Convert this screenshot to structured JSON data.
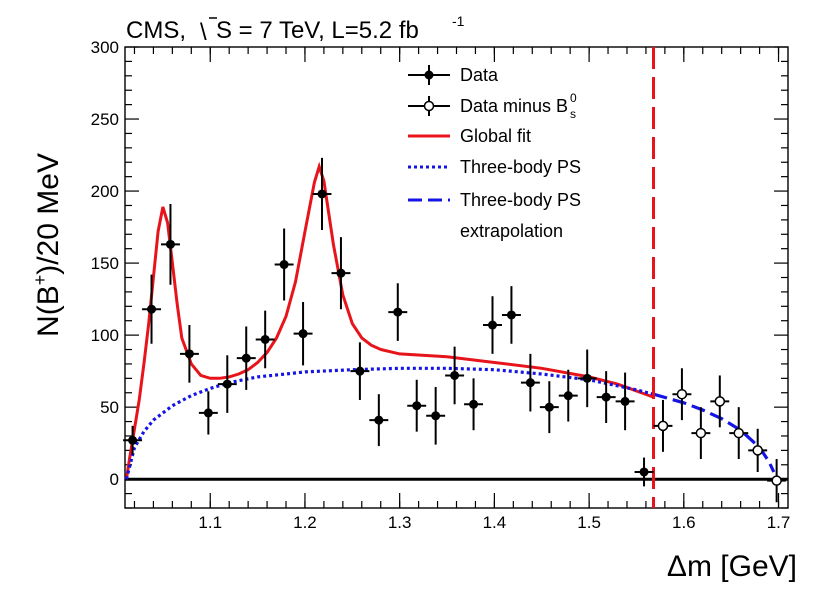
{
  "chart_data": {
    "type": "scatter",
    "header": {
      "experiment": "CMS,",
      "sqrt_s": "S = 7 TeV, L=5.2 fb",
      "lumi_exponent": "-1"
    },
    "xlabel": "Δm [GeV]",
    "ylabel": {
      "prefix": "N(B",
      "superscript": "+",
      "suffix": ")/20 MeV"
    },
    "xlim": [
      1.01,
      1.71
    ],
    "ylim": [
      -20,
      300
    ],
    "x_ticks": [
      "1.1",
      "1.2",
      "1.3",
      "1.4",
      "1.5",
      "1.6",
      "1.7"
    ],
    "y_ticks": [
      "0",
      "50",
      "100",
      "150",
      "200",
      "250",
      "300"
    ],
    "grid": false,
    "legend_position": "top-center",
    "legend": [
      {
        "label": "Data",
        "style": "filled-marker"
      },
      {
        "label": "Data minus B",
        "sub": "s",
        "sup": "0",
        "style": "open-marker"
      },
      {
        "label": "Global fit",
        "style": "solid-red"
      },
      {
        "label": "Three-body PS",
        "style": "dotted-blue"
      },
      {
        "label": "Three-body PS",
        "style": "dashed-blue"
      },
      {
        "label": "extrapolation",
        "style": "none"
      }
    ],
    "colors": {
      "fit": "#e8141c",
      "phase_space": "#1414e6",
      "cut_line": "#e8141c",
      "data": "#000000"
    },
    "x_error_halfwidth": 0.01,
    "cut_x": 1.568,
    "baseline_y": 0,
    "series": [
      {
        "name": "Data",
        "marker": "filled",
        "points": [
          {
            "x": 1.018,
            "y": 27,
            "err": 10
          },
          {
            "x": 1.038,
            "y": 118,
            "err": 24
          },
          {
            "x": 1.058,
            "y": 163,
            "err": 28
          },
          {
            "x": 1.078,
            "y": 87,
            "err": 20
          },
          {
            "x": 1.098,
            "y": 46,
            "err": 15
          },
          {
            "x": 1.118,
            "y": 66,
            "err": 20
          },
          {
            "x": 1.138,
            "y": 84,
            "err": 22
          },
          {
            "x": 1.158,
            "y": 97,
            "err": 20
          },
          {
            "x": 1.178,
            "y": 149,
            "err": 25
          },
          {
            "x": 1.198,
            "y": 101,
            "err": 22
          },
          {
            "x": 1.218,
            "y": 198,
            "err": 25
          },
          {
            "x": 1.238,
            "y": 143,
            "err": 25
          },
          {
            "x": 1.258,
            "y": 75,
            "err": 20
          },
          {
            "x": 1.278,
            "y": 41,
            "err": 18
          },
          {
            "x": 1.298,
            "y": 116,
            "err": 20
          },
          {
            "x": 1.318,
            "y": 51,
            "err": 18
          },
          {
            "x": 1.338,
            "y": 44,
            "err": 20
          },
          {
            "x": 1.358,
            "y": 72,
            "err": 20
          },
          {
            "x": 1.378,
            "y": 52,
            "err": 18
          },
          {
            "x": 1.398,
            "y": 107,
            "err": 20
          },
          {
            "x": 1.418,
            "y": 114,
            "err": 20
          },
          {
            "x": 1.438,
            "y": 67,
            "err": 20
          },
          {
            "x": 1.458,
            "y": 50,
            "err": 18
          },
          {
            "x": 1.478,
            "y": 58,
            "err": 18
          },
          {
            "x": 1.498,
            "y": 70,
            "err": 20
          },
          {
            "x": 1.518,
            "y": 57,
            "err": 18
          },
          {
            "x": 1.538,
            "y": 54,
            "err": 20
          },
          {
            "x": 1.558,
            "y": 5,
            "err": 10
          }
        ]
      },
      {
        "name": "Data minus B_s^0",
        "marker": "open",
        "points": [
          {
            "x": 1.578,
            "y": 37,
            "err": 18
          },
          {
            "x": 1.598,
            "y": 59,
            "err": 18
          },
          {
            "x": 1.618,
            "y": 32,
            "err": 18
          },
          {
            "x": 1.638,
            "y": 54,
            "err": 18
          },
          {
            "x": 1.658,
            "y": 32,
            "err": 18
          },
          {
            "x": 1.678,
            "y": 20,
            "err": 15
          },
          {
            "x": 1.698,
            "y": -1,
            "err": 15
          }
        ]
      },
      {
        "name": "Global fit",
        "style": "solid-red",
        "points": [
          [
            1.0115,
            0
          ],
          [
            1.015,
            15
          ],
          [
            1.02,
            35
          ],
          [
            1.025,
            55
          ],
          [
            1.03,
            80
          ],
          [
            1.035,
            108
          ],
          [
            1.04,
            140
          ],
          [
            1.045,
            172
          ],
          [
            1.05,
            189
          ],
          [
            1.055,
            178
          ],
          [
            1.06,
            150
          ],
          [
            1.065,
            122
          ],
          [
            1.07,
            98
          ],
          [
            1.08,
            80
          ],
          [
            1.09,
            72
          ],
          [
            1.1,
            70
          ],
          [
            1.11,
            70
          ],
          [
            1.12,
            71
          ],
          [
            1.13,
            73
          ],
          [
            1.14,
            76
          ],
          [
            1.15,
            81
          ],
          [
            1.16,
            88
          ],
          [
            1.17,
            98
          ],
          [
            1.18,
            113
          ],
          [
            1.19,
            137
          ],
          [
            1.2,
            172
          ],
          [
            1.21,
            206
          ],
          [
            1.215,
            217
          ],
          [
            1.22,
            207
          ],
          [
            1.23,
            163
          ],
          [
            1.24,
            128
          ],
          [
            1.25,
            108
          ],
          [
            1.26,
            98
          ],
          [
            1.27,
            93
          ],
          [
            1.28,
            90
          ],
          [
            1.3,
            87
          ],
          [
            1.35,
            85
          ],
          [
            1.4,
            81
          ],
          [
            1.45,
            77
          ],
          [
            1.5,
            71
          ],
          [
            1.53,
            66
          ],
          [
            1.568,
            57
          ]
        ]
      },
      {
        "name": "Three-body PS",
        "style": "dotted-blue",
        "points": [
          [
            1.0115,
            0
          ],
          [
            1.02,
            22
          ],
          [
            1.03,
            33
          ],
          [
            1.04,
            41
          ],
          [
            1.06,
            51
          ],
          [
            1.08,
            58
          ],
          [
            1.1,
            63
          ],
          [
            1.12,
            67
          ],
          [
            1.15,
            71
          ],
          [
            1.18,
            73
          ],
          [
            1.2,
            74.5
          ],
          [
            1.25,
            76
          ],
          [
            1.3,
            77
          ],
          [
            1.35,
            77
          ],
          [
            1.4,
            76
          ],
          [
            1.45,
            73
          ],
          [
            1.5,
            69
          ],
          [
            1.55,
            62
          ],
          [
            1.568,
            59
          ]
        ]
      },
      {
        "name": "Three-body PS extrapolation",
        "style": "dashed-blue",
        "points": [
          [
            1.568,
            59
          ],
          [
            1.6,
            53
          ],
          [
            1.62,
            48
          ],
          [
            1.64,
            42
          ],
          [
            1.66,
            34
          ],
          [
            1.68,
            22
          ],
          [
            1.69,
            12
          ],
          [
            1.695,
            5
          ]
        ]
      }
    ]
  }
}
